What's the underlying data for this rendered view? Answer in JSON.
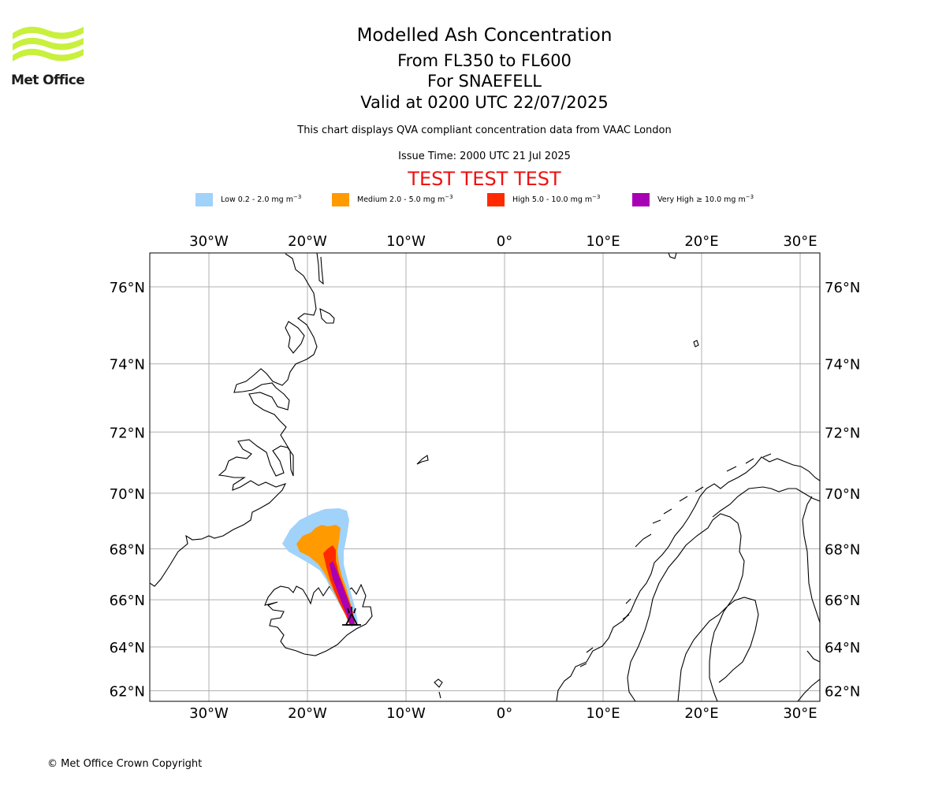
{
  "branding": {
    "logo_text": "Met Office",
    "logo_icon": "met-office-wave-logo",
    "logo_color": "#c8f03c"
  },
  "header": {
    "title": "Modelled Ash Concentration",
    "flight_levels": "From FL350 to FL600",
    "volcano": "For SNAEFELL",
    "valid_time": "Valid at 0200 UTC 22/07/2025",
    "description": "This chart displays QVA compliant concentration data from VAAC London",
    "issue_time": "Issue Time: 2000 UTC 21 Jul 2025",
    "test_banner": "TEST TEST TEST",
    "test_color": "#ee1111"
  },
  "legend": [
    {
      "label": "Low 0.2 - 2.0 mg m",
      "unit_exp": "−3",
      "color": "#a0d2fa"
    },
    {
      "label": "Medium 2.0 - 5.0 mg m",
      "unit_exp": "−3",
      "color": "#ff9a00"
    },
    {
      "label": "High 5.0 - 10.0 mg m",
      "unit_exp": "−3",
      "color": "#ff2a00"
    },
    {
      "label": "Very High  ≥  10.0 mg m",
      "unit_exp": "−3",
      "color": "#a800b4"
    }
  ],
  "map": {
    "projection": "Mercator",
    "lon_range": [
      -36,
      32
    ],
    "lat_range": [
      61.5,
      76.8
    ],
    "lon_ticks": [
      {
        "value": -30,
        "label": "30°W"
      },
      {
        "value": -20,
        "label": "20°W"
      },
      {
        "value": -10,
        "label": "10°W"
      },
      {
        "value": 0,
        "label": "0°"
      },
      {
        "value": 10,
        "label": "10°E"
      },
      {
        "value": 20,
        "label": "20°E"
      },
      {
        "value": 30,
        "label": "30°E"
      }
    ],
    "lat_ticks": [
      {
        "value": 76,
        "label": "76°N"
      },
      {
        "value": 74,
        "label": "74°N"
      },
      {
        "value": 72,
        "label": "72°N"
      },
      {
        "value": 70,
        "label": "70°N"
      },
      {
        "value": 68,
        "label": "68°N"
      },
      {
        "value": 66,
        "label": "66°N"
      },
      {
        "value": 64,
        "label": "64°N"
      },
      {
        "value": 62,
        "label": "62°N"
      }
    ],
    "gridlines": true,
    "volcano_marker": {
      "name": "SNAEFELL",
      "lon": -15.55,
      "lat": 64.8,
      "icon": "volcano-icon"
    }
  },
  "footer": {
    "copyright": "© Met Office Crown Copyright"
  }
}
